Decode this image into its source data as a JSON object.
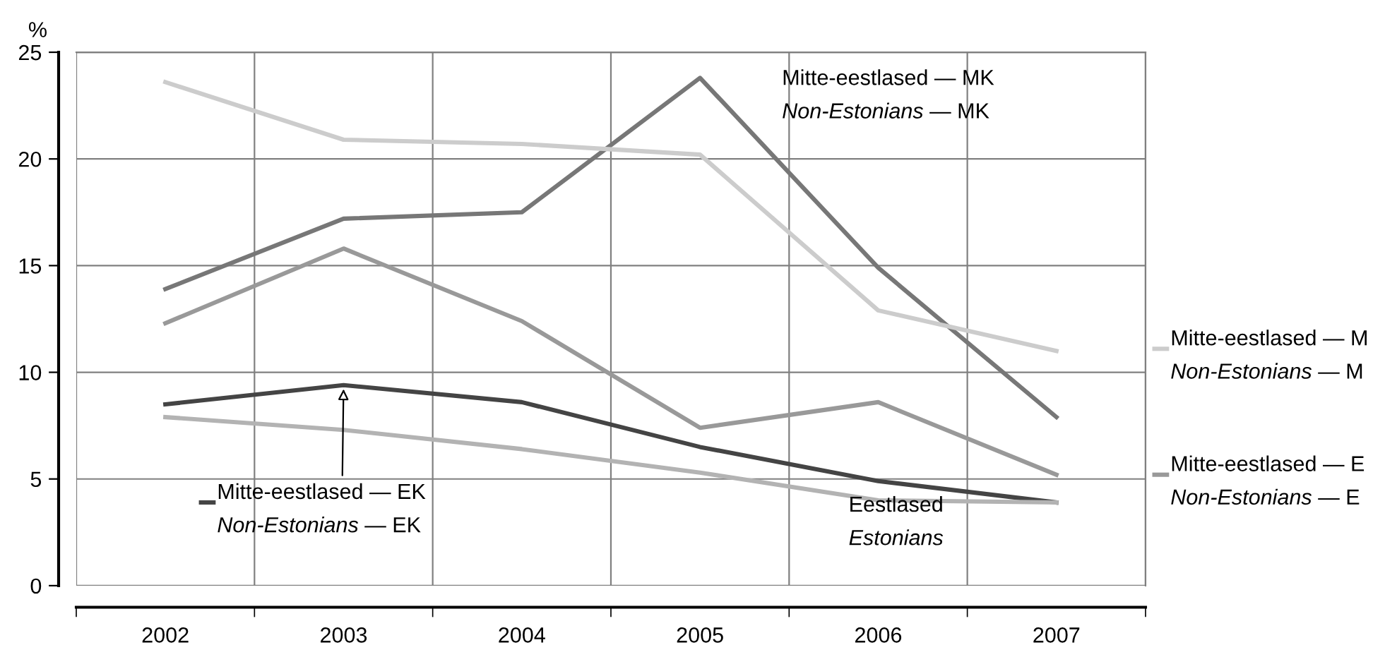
{
  "chart_data": {
    "type": "line",
    "ylabel": "%",
    "categories": [
      "2002",
      "2003",
      "2004",
      "2005",
      "2006",
      "2007"
    ],
    "ylim": [
      0,
      25
    ],
    "yticks": [
      0,
      5,
      10,
      15,
      20,
      25
    ],
    "grid": true,
    "legend": "right",
    "series": [
      {
        "name": "Mitte-eestlased — MK\nNon-Estonians — MK",
        "color": "#777777",
        "values": [
          13.9,
          17.2,
          17.5,
          23.8,
          14.9,
          7.9
        ]
      },
      {
        "name": "Mitte-eestlased — M\nNon-Estonians — M",
        "color": "#cccccc",
        "values": [
          23.6,
          20.9,
          20.7,
          20.2,
          12.9,
          11.0
        ]
      },
      {
        "name": "Mitte-eestlased — E\nNon-Estonians — E",
        "color": "#999999",
        "values": [
          12.3,
          15.8,
          12.4,
          7.4,
          8.6,
          5.2
        ]
      },
      {
        "name": "Mitte-eestlased — EK\nNon-Estonians — EK",
        "color": "#444444",
        "values": [
          8.5,
          9.4,
          8.6,
          6.5,
          4.9,
          3.9
        ]
      },
      {
        "name": "Eestlased\nEstonians",
        "color": "#b3b3b3",
        "values": [
          7.9,
          7.3,
          6.4,
          5.3,
          4.0,
          3.9
        ]
      }
    ]
  }
}
